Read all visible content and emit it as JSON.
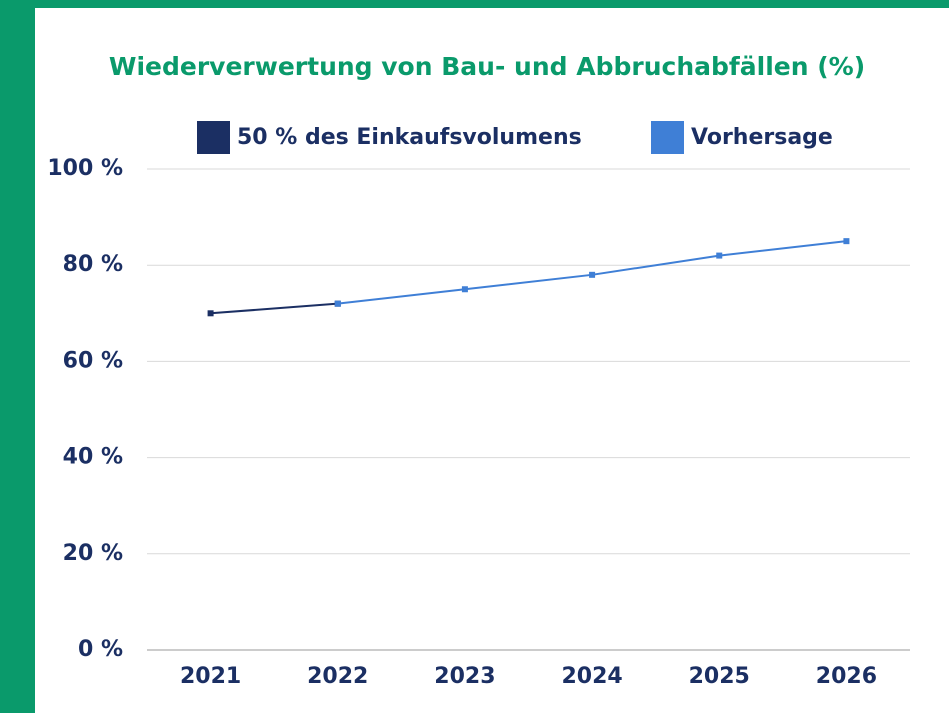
{
  "chart_data": {
    "type": "line",
    "title": "Wiederverwertung von Bau- und Abbruchabfällen (%)",
    "categories": [
      "2021",
      "2022",
      "2023",
      "2024",
      "2025",
      "2026"
    ],
    "series": [
      {
        "name": "50 % des Einkaufsvolumens",
        "color": "#1b2f63",
        "values": [
          70,
          72,
          null,
          null,
          null,
          null
        ]
      },
      {
        "name": "Vorhersage",
        "color": "#3f7fd6",
        "values": [
          null,
          72,
          75,
          78,
          82,
          85
        ]
      }
    ],
    "ylim": [
      0,
      100
    ],
    "yticks": [
      {
        "value": 0,
        "label": "0 %"
      },
      {
        "value": 20,
        "label": "20 %"
      },
      {
        "value": 40,
        "label": "40 %"
      },
      {
        "value": 60,
        "label": "60 %"
      },
      {
        "value": 80,
        "label": "80 %"
      },
      {
        "value": 100,
        "label": "100 %"
      }
    ],
    "grid": true,
    "legend": "top"
  }
}
